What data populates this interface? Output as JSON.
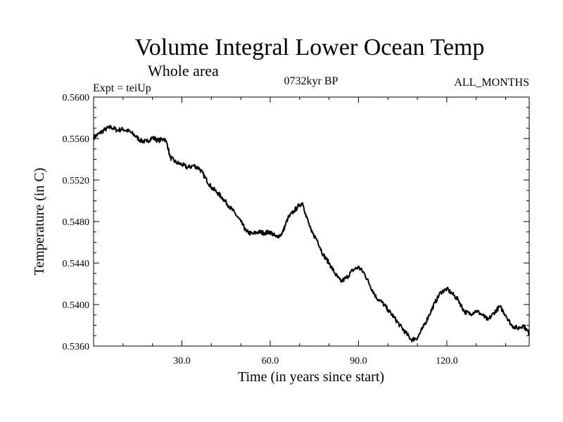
{
  "header": {
    "title": "Volume Integral Lower Ocean Temp",
    "subtitle": "Whole area",
    "expt": "Expt = teiUp",
    "period": "0732kyr BP",
    "months": "ALL_MONTHS"
  },
  "chart_data": {
    "type": "line",
    "title": "Volume Integral Lower Ocean Temp",
    "subtitle": "Whole area",
    "xlabel": "Time (in years since start)",
    "ylabel": "Temperature (in C)",
    "xlim": [
      0,
      148
    ],
    "ylim": [
      0.536,
      0.56
    ],
    "x_ticks": [
      30,
      60,
      90,
      120
    ],
    "x_tick_labels": [
      "30.0",
      "60.0",
      "90.0",
      "120.0"
    ],
    "y_ticks": [
      0.536,
      0.54,
      0.544,
      0.548,
      0.552,
      0.556,
      0.56
    ],
    "y_tick_labels": [
      "0.5360",
      "0.5400",
      "0.5440",
      "0.5480",
      "0.5520",
      "0.5560",
      "0.5600"
    ],
    "grid": false,
    "series": [
      {
        "name": "Volume Integral Lower Ocean Temp",
        "color": "#000000",
        "x": [
          0,
          2,
          4,
          6,
          8,
          10,
          12,
          14,
          16,
          18,
          20,
          22,
          24,
          25,
          26,
          28,
          30,
          32,
          34,
          36,
          38,
          40,
          42,
          44,
          46,
          48,
          50,
          52,
          54,
          56,
          58,
          60,
          62,
          64,
          66,
          68,
          70,
          71,
          72,
          74,
          76,
          78,
          80,
          82,
          84,
          86,
          88,
          90,
          92,
          94,
          96,
          98,
          100,
          102,
          104,
          106,
          108,
          110,
          112,
          114,
          116,
          118,
          120,
          122,
          124,
          126,
          128,
          130,
          132,
          134,
          136,
          138,
          140,
          142,
          144,
          146,
          148
        ],
        "y": [
          0.5561,
          0.5565,
          0.5569,
          0.5571,
          0.5568,
          0.5569,
          0.5567,
          0.5563,
          0.5558,
          0.5557,
          0.5561,
          0.5558,
          0.556,
          0.5555,
          0.5542,
          0.5537,
          0.5535,
          0.5532,
          0.5534,
          0.5531,
          0.5522,
          0.5513,
          0.5508,
          0.5502,
          0.5495,
          0.5488,
          0.548,
          0.547,
          0.5468,
          0.547,
          0.5469,
          0.547,
          0.5465,
          0.5468,
          0.5483,
          0.549,
          0.5496,
          0.5498,
          0.5488,
          0.547,
          0.5462,
          0.5448,
          0.544,
          0.543,
          0.5422,
          0.5426,
          0.5433,
          0.5436,
          0.543,
          0.5418,
          0.5407,
          0.5402,
          0.5395,
          0.5388,
          0.538,
          0.5373,
          0.5366,
          0.5368,
          0.5378,
          0.539,
          0.5402,
          0.5412,
          0.5415,
          0.541,
          0.5404,
          0.5393,
          0.5391,
          0.5394,
          0.539,
          0.5385,
          0.5392,
          0.5398,
          0.539,
          0.538,
          0.5377,
          0.538,
          0.5372
        ]
      }
    ]
  }
}
